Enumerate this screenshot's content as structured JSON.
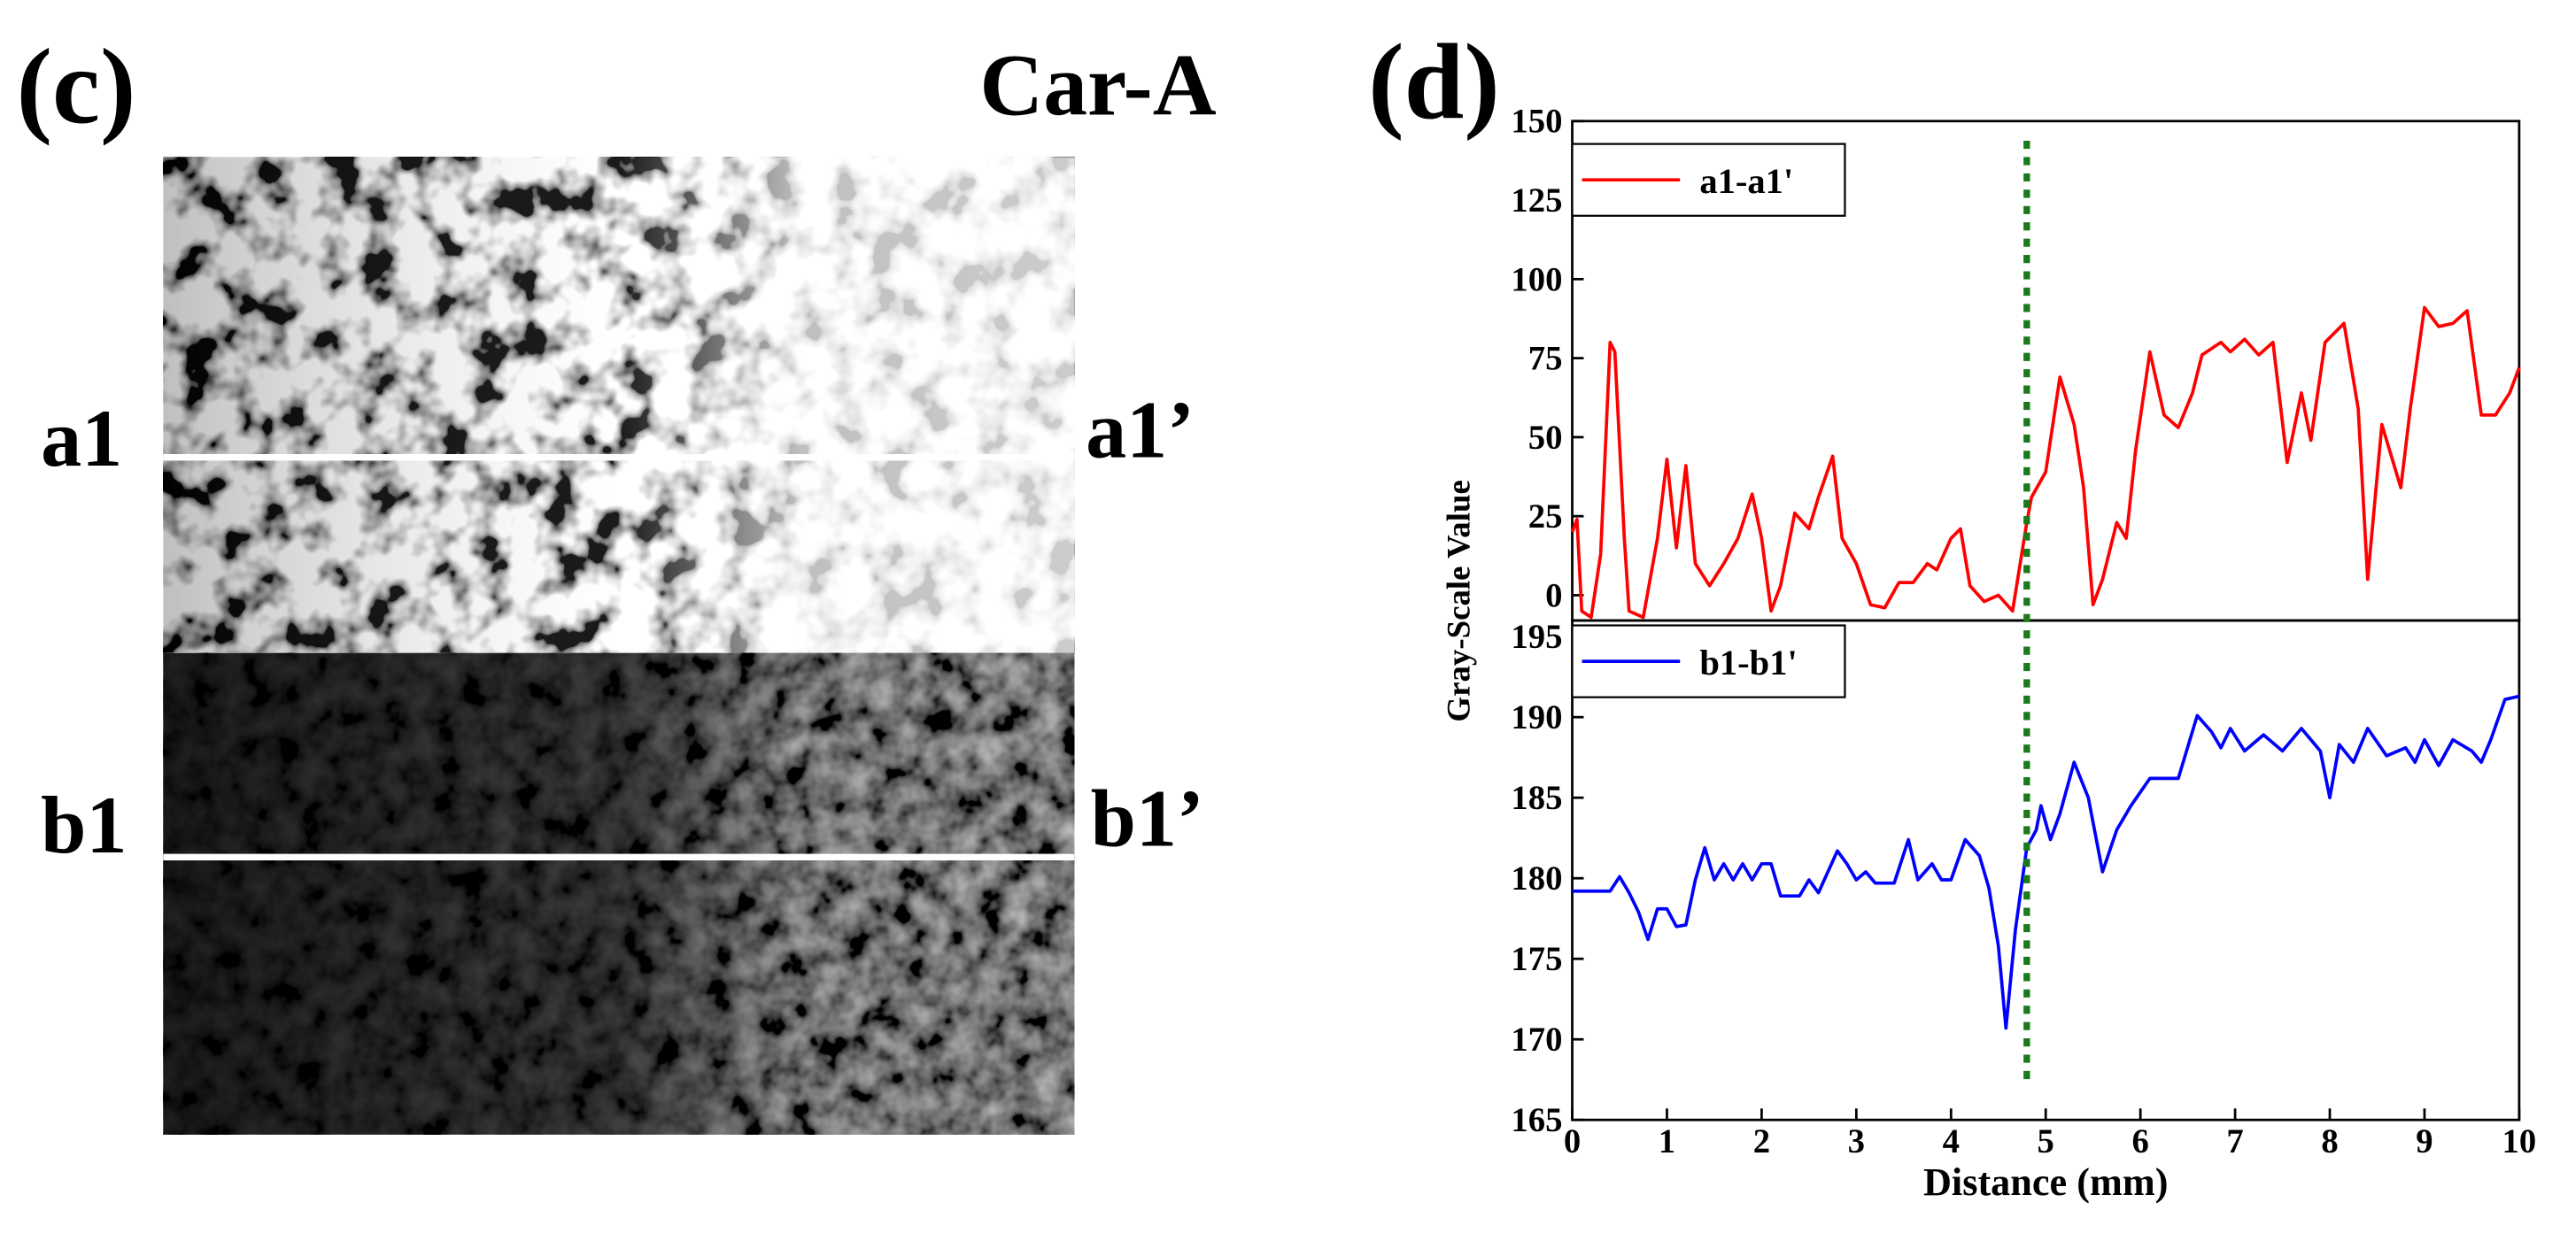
{
  "figure": {
    "panel_c_label": "(c)",
    "title": "Car-A",
    "line_labels": [
      "a1",
      "a1’",
      "b1",
      "b1’"
    ],
    "panel_d_label": "(d)",
    "ylabel": "Gray-Scale Value",
    "divider_x": 4.8,
    "divider_color": "#1a7a1a"
  },
  "chart_data": [
    {
      "type": "line",
      "xlim": [
        0,
        10
      ],
      "ylim": [
        -8,
        150
      ],
      "yticks": [
        0,
        25,
        50,
        75,
        100,
        125,
        150
      ],
      "legend": "upper left",
      "series": [
        {
          "name": "a1-a1'",
          "color": "#ff0000",
          "x": [
            0,
            0.05,
            0.1,
            0.2,
            0.3,
            0.4,
            0.45,
            0.55,
            0.6,
            0.75,
            0.9,
            1.0,
            1.1,
            1.2,
            1.3,
            1.45,
            1.6,
            1.75,
            1.9,
            2.0,
            2.1,
            2.2,
            2.35,
            2.5,
            2.6,
            2.75,
            2.85,
            3.0,
            3.15,
            3.3,
            3.45,
            3.6,
            3.75,
            3.85,
            4.0,
            4.1,
            4.2,
            4.35,
            4.5,
            4.65,
            4.8,
            4.85,
            5.0,
            5.15,
            5.3,
            5.4,
            5.5,
            5.6,
            5.75,
            5.85,
            5.95,
            6.1,
            6.25,
            6.4,
            6.55,
            6.65,
            6.85,
            6.95,
            7.1,
            7.25,
            7.4,
            7.55,
            7.7,
            7.8,
            7.95,
            8.15,
            8.3,
            8.4,
            8.55,
            8.75,
            8.85,
            9.0,
            9.15,
            9.3,
            9.45,
            9.6,
            9.75,
            9.9,
            10
          ],
          "values": [
            20,
            24,
            -5,
            -7,
            13,
            80,
            77,
            18,
            -5,
            -7,
            18,
            43,
            15,
            41,
            10,
            3,
            10,
            18,
            32,
            18,
            -5,
            3,
            26,
            21,
            31,
            44,
            18,
            10,
            -3,
            -4,
            4,
            4,
            10,
            8,
            18,
            21,
            3,
            -2,
            0,
            -5,
            23,
            31,
            39,
            69,
            54,
            34,
            -3,
            5,
            23,
            18,
            46,
            77,
            57,
            53,
            64,
            76,
            80,
            77,
            81,
            76,
            80,
            42,
            64,
            49,
            80,
            86,
            59,
            5,
            54,
            34,
            59,
            91,
            85,
            86,
            90,
            57,
            57,
            64,
            72
          ]
        }
      ]
    },
    {
      "type": "line",
      "xlim": [
        0,
        10
      ],
      "ylim": [
        165,
        196
      ],
      "yticks": [
        165,
        170,
        175,
        180,
        185,
        190,
        195
      ],
      "xticks": [
        0,
        1,
        2,
        3,
        4,
        5,
        6,
        7,
        8,
        9,
        10
      ],
      "xlabel": "Distance (mm)",
      "legend": "upper left",
      "series": [
        {
          "name": "b1-b1'",
          "color": "#0000ff",
          "x": [
            0,
            0.4,
            0.5,
            0.6,
            0.7,
            0.8,
            0.9,
            1.0,
            1.1,
            1.2,
            1.3,
            1.4,
            1.5,
            1.6,
            1.7,
            1.8,
            1.9,
            2.0,
            2.1,
            2.2,
            2.4,
            2.5,
            2.6,
            2.8,
            2.9,
            3.0,
            3.1,
            3.2,
            3.4,
            3.55,
            3.65,
            3.8,
            3.9,
            4.0,
            4.15,
            4.3,
            4.4,
            4.5,
            4.58,
            4.68,
            4.8,
            4.9,
            4.95,
            5.05,
            5.15,
            5.3,
            5.45,
            5.6,
            5.75,
            5.9,
            6.1,
            6.4,
            6.6,
            6.75,
            6.85,
            6.95,
            7.1,
            7.3,
            7.5,
            7.7,
            7.9,
            8.0,
            8.1,
            8.25,
            8.4,
            8.6,
            8.8,
            8.9,
            9.0,
            9.15,
            9.3,
            9.5,
            9.6,
            9.7,
            9.85,
            10
          ],
          "values": [
            179.2,
            179.2,
            180.1,
            179.1,
            177.9,
            176.2,
            178.1,
            178.1,
            177,
            177.1,
            179.9,
            181.9,
            179.9,
            180.9,
            179.9,
            180.9,
            179.9,
            180.9,
            180.9,
            178.9,
            178.9,
            179.9,
            179.1,
            181.7,
            180.9,
            179.9,
            180.4,
            179.7,
            179.7,
            182.4,
            179.9,
            180.9,
            179.9,
            179.9,
            182.4,
            181.4,
            179.4,
            175.8,
            170.7,
            176.8,
            181.9,
            183,
            184.5,
            182.4,
            184,
            187.2,
            185,
            180.4,
            183,
            184.5,
            186.2,
            186.2,
            190.1,
            189.1,
            188.1,
            189.3,
            187.9,
            188.9,
            187.9,
            189.3,
            187.9,
            185,
            188.3,
            187.2,
            189.3,
            187.6,
            188.1,
            187.2,
            188.6,
            187,
            188.6,
            187.9,
            187.2,
            188.6,
            191.1,
            191.3
          ]
        }
      ]
    }
  ]
}
